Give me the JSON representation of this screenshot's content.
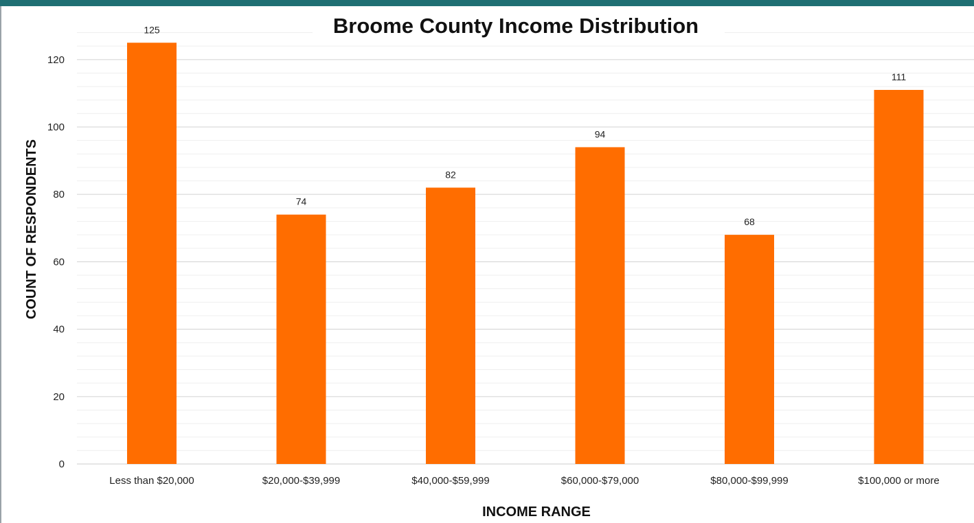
{
  "chart_data": {
    "type": "bar",
    "title": "Broome County Income Distribution",
    "xlabel": "INCOME RANGE",
    "ylabel": "COUNT OF RESPONDENTS",
    "categories": [
      "Less than $20,000",
      "$20,000-$39,999",
      "$40,000-$59,999",
      "$60,000-$79,000",
      "$80,000-$99,999",
      "$100,000 or more"
    ],
    "values": [
      125,
      74,
      82,
      94,
      68,
      111
    ],
    "data_labels": [
      "125",
      "74",
      "82",
      "94",
      "68",
      "111"
    ],
    "yticks": [
      "0",
      "20",
      "40",
      "60",
      "80",
      "100",
      "120"
    ],
    "ylim": [
      0,
      128
    ],
    "grid": true,
    "legend": "none",
    "colors": {
      "bar": "#ff6d00",
      "major_grid": "#d9d9d9",
      "minor_grid": "#efefef",
      "top_strip": "#1f6f73"
    }
  }
}
